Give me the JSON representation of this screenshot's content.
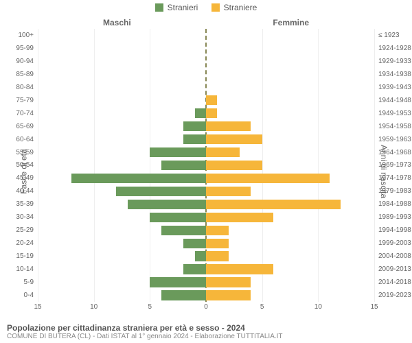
{
  "chart": {
    "type": "population-pyramid",
    "legend": {
      "male": {
        "label": "Stranieri",
        "color": "#6a9a5b"
      },
      "female": {
        "label": "Straniere",
        "color": "#f6b63a"
      }
    },
    "header_left": "Maschi",
    "header_right": "Femmine",
    "y_title_left": "Fasce di età",
    "y_title_right": "Anni di nascita",
    "x_max": 15,
    "x_ticks": [
      15,
      10,
      5,
      0,
      5,
      10,
      15
    ],
    "background_color": "#ffffff",
    "grid_color": "#eeeeee",
    "centerline_color": "#888855",
    "label_color": "#666666",
    "label_fontsize": 10,
    "rows": [
      {
        "age": "100+",
        "birth": "≤ 1923",
        "m": 0,
        "f": 0
      },
      {
        "age": "95-99",
        "birth": "1924-1928",
        "m": 0,
        "f": 0
      },
      {
        "age": "90-94",
        "birth": "1929-1933",
        "m": 0,
        "f": 0
      },
      {
        "age": "85-89",
        "birth": "1934-1938",
        "m": 0,
        "f": 0
      },
      {
        "age": "80-84",
        "birth": "1939-1943",
        "m": 0,
        "f": 0
      },
      {
        "age": "75-79",
        "birth": "1944-1948",
        "m": 0,
        "f": 1
      },
      {
        "age": "70-74",
        "birth": "1949-1953",
        "m": 1,
        "f": 1
      },
      {
        "age": "65-69",
        "birth": "1954-1958",
        "m": 2,
        "f": 4
      },
      {
        "age": "60-64",
        "birth": "1959-1963",
        "m": 2,
        "f": 5
      },
      {
        "age": "55-59",
        "birth": "1964-1968",
        "m": 5,
        "f": 3
      },
      {
        "age": "50-54",
        "birth": "1969-1973",
        "m": 4,
        "f": 5
      },
      {
        "age": "45-49",
        "birth": "1974-1978",
        "m": 12,
        "f": 11
      },
      {
        "age": "40-44",
        "birth": "1979-1983",
        "m": 8,
        "f": 4
      },
      {
        "age": "35-39",
        "birth": "1984-1988",
        "m": 7,
        "f": 12
      },
      {
        "age": "30-34",
        "birth": "1989-1993",
        "m": 5,
        "f": 6
      },
      {
        "age": "25-29",
        "birth": "1994-1998",
        "m": 4,
        "f": 2
      },
      {
        "age": "20-24",
        "birth": "1999-2003",
        "m": 2,
        "f": 2
      },
      {
        "age": "15-19",
        "birth": "2004-2008",
        "m": 1,
        "f": 2
      },
      {
        "age": "10-14",
        "birth": "2009-2013",
        "m": 2,
        "f": 6
      },
      {
        "age": "5-9",
        "birth": "2014-2018",
        "m": 5,
        "f": 4
      },
      {
        "age": "0-4",
        "birth": "2019-2023",
        "m": 4,
        "f": 4
      }
    ]
  },
  "footer": {
    "title": "Popolazione per cittadinanza straniera per età e sesso - 2024",
    "subtitle": "COMUNE DI BUTERA (CL) - Dati ISTAT al 1° gennaio 2024 - Elaborazione TUTTITALIA.IT"
  }
}
